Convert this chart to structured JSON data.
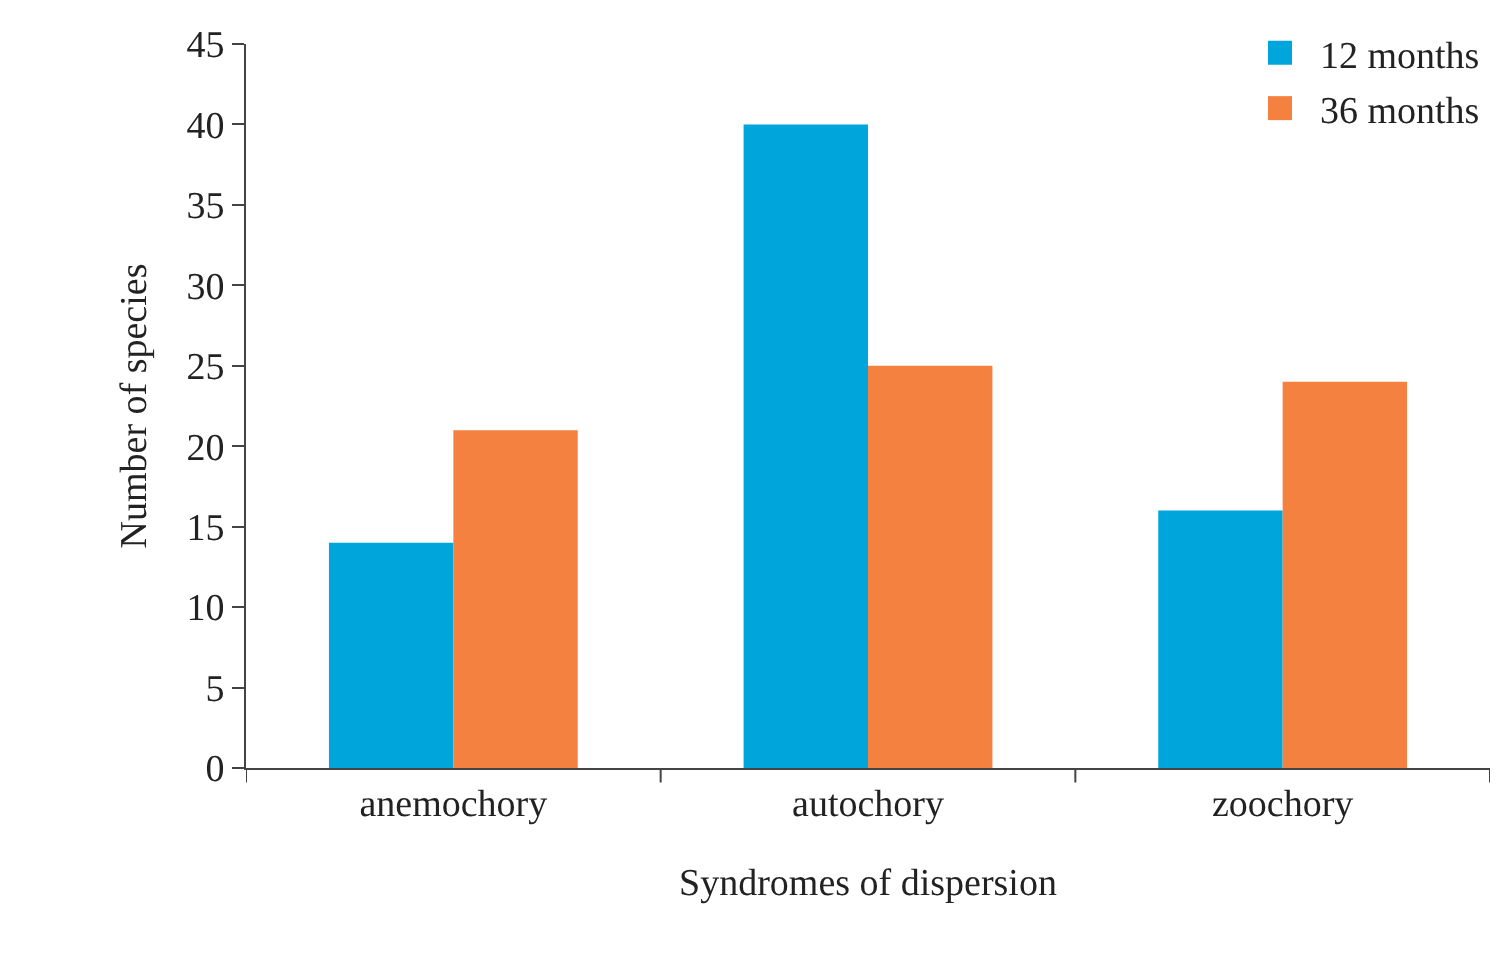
{
  "chart_data": {
    "type": "bar",
    "xlabel": "Syndromes of dispersion",
    "ylabel": "Number of species",
    "categories": [
      "anemochory",
      "autochory",
      "zoochory"
    ],
    "series": [
      {
        "name": "12 months",
        "color": "#00a5dc",
        "values": [
          14,
          40,
          16
        ]
      },
      {
        "name": "36 months",
        "color": "#f4813f",
        "values": [
          21,
          25,
          24
        ]
      }
    ],
    "ylim": [
      0,
      45
    ],
    "yticks": [
      0,
      5,
      10,
      15,
      20,
      25,
      30,
      35,
      40,
      45
    ],
    "grid": false,
    "legend": "top right"
  }
}
